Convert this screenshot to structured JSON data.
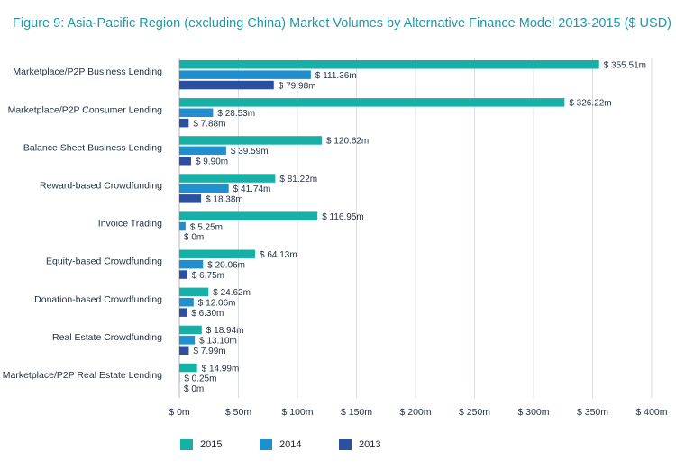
{
  "title": "Figure 9: Asia-Pacific Region (excluding China) Market Volumes by Alternative Finance Model 2013-2015 ($ USD)",
  "colors": {
    "s2015": "#16b0a6",
    "s2014": "#1f8fd0",
    "s2013": "#2c4f9e",
    "grid": "#d8dce4",
    "text": "#223344"
  },
  "chart_data": {
    "type": "bar",
    "orientation": "horizontal",
    "title": "Figure 9: Asia-Pacific Region (excluding China) Market Volumes by Alternative Finance Model 2013-2015 ($ USD)",
    "categories": [
      "Marketplace/P2P Business Lending",
      "Marketplace/P2P Consumer Lending",
      "Balance Sheet Business Lending",
      "Reward-based Crowdfunding",
      "Invoice Trading",
      "Equity-based Crowdfunding",
      "Donation-based Crowdfunding",
      "Real Estate Crowdfunding",
      "Marketplace/P2P Real Estate Lending"
    ],
    "series": [
      {
        "name": "2015",
        "values": [
          355.51,
          326.22,
          120.62,
          81.22,
          116.95,
          64.13,
          24.62,
          18.94,
          14.99
        ],
        "labels": [
          "$ 355.51m",
          "$ 326.22m",
          "$ 120.62m",
          "$ 81.22m",
          "$ 116.95m",
          "$ 64.13m",
          "$ 24.62m",
          "$ 18.94m",
          "$ 14.99m"
        ]
      },
      {
        "name": "2014",
        "values": [
          111.36,
          28.53,
          39.59,
          41.74,
          5.25,
          20.06,
          12.06,
          13.1,
          0.25
        ],
        "labels": [
          "$ 111.36m",
          "$ 28.53m",
          "$ 39.59m",
          "$ 41.74m",
          "$ 5.25m",
          "$ 20.06m",
          "$ 12.06m",
          "$ 13.10m",
          "$ 0.25m"
        ]
      },
      {
        "name": "2013",
        "values": [
          79.98,
          7.88,
          9.9,
          18.38,
          0,
          6.75,
          6.3,
          7.99,
          0
        ],
        "labels": [
          "$ 79.98m",
          "$ 7.88m",
          "$ 9.90m",
          "$ 18.38m",
          "$ 0m",
          "$ 6.75m",
          "$ 6.30m",
          "$ 7.99m",
          "$ 0m"
        ]
      }
    ],
    "xlim": [
      0,
      400
    ],
    "xticks": [
      0,
      50,
      100,
      150,
      200,
      250,
      300,
      350,
      400
    ],
    "xtick_labels": [
      "$ 0m",
      "$ 50m",
      "$ 100m",
      "$ 150m",
      "$ 200m",
      "$ 250m",
      "$ 300m",
      "$ 350m",
      "$ 400m"
    ],
    "grid": true,
    "legend_position": "bottom",
    "legend": [
      "2015",
      "2014",
      "2013"
    ]
  }
}
